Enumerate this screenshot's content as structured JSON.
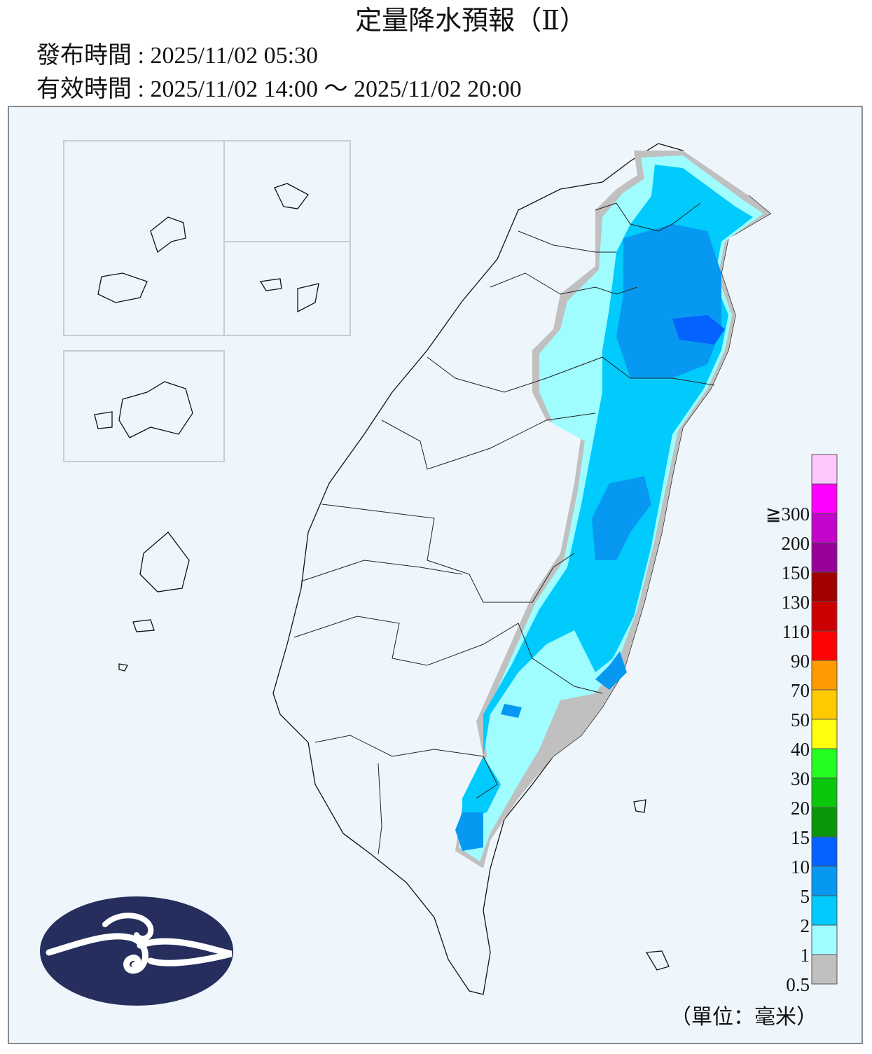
{
  "header": {
    "title": "定量降水預報（Ⅱ）",
    "issued": "發布時間 : 2025/11/02 05:30",
    "valid": "有效時間 : 2025/11/02 14:00 ～ 2025/11/02 20:00"
  },
  "legend": {
    "labels": [
      "0.5",
      "1",
      "2",
      "5",
      "10",
      "15",
      "20",
      "30",
      "40",
      "50",
      "70",
      "90",
      "110",
      "130",
      "150",
      "200",
      "≧300"
    ],
    "colors": [
      "#c0c0c0",
      "#9ffcff",
      "#00cbfc",
      "#0799f2",
      "#0462fe",
      "#08970a",
      "#0ac70c",
      "#24ff1f",
      "#fffe0d",
      "#ffcb00",
      "#ff9a00",
      "#fd0301",
      "#cc0003",
      "#a00000",
      "#98009a",
      "#c304cb",
      "#ff00ff"
    ],
    "top_color": "#ffc8fd",
    "unit": "（單位：毫米）"
  }
}
